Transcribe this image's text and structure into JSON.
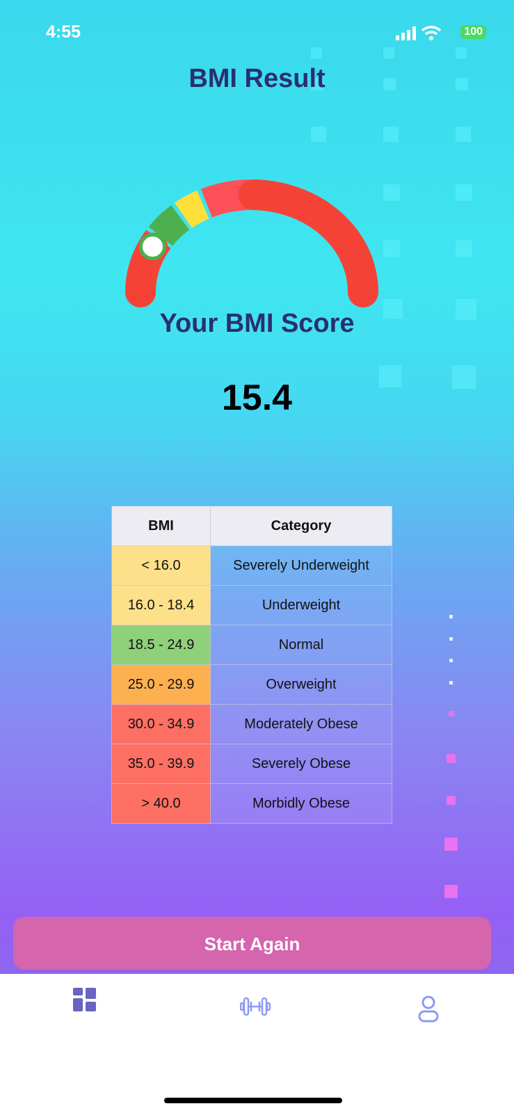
{
  "status_bar": {
    "time": "4:55",
    "battery": "100"
  },
  "header": {
    "title": "BMI Result"
  },
  "gauge": {
    "value": 15.4,
    "colors": {
      "red": "#f44336",
      "light_red": "#fd5059",
      "green": "#4caf50",
      "yellow": "#ffe03a",
      "marker_ring": "#4caf50"
    }
  },
  "result": {
    "label": "Your BMI Score",
    "score": "15.4"
  },
  "table": {
    "headers": [
      "BMI",
      "Category"
    ],
    "rows": [
      {
        "bmi": "< 16.0",
        "category": "Severely Underweight",
        "color": "#fde08a"
      },
      {
        "bmi": "16.0 - 18.4",
        "category": "Underweight",
        "color": "#fde08a"
      },
      {
        "bmi": "18.5 - 24.9",
        "category": "Normal",
        "color": "#8fd07a"
      },
      {
        "bmi": "25.0 - 29.9",
        "category": "Overweight",
        "color": "#fdb050"
      },
      {
        "bmi": "30.0 - 34.9",
        "category": "Moderately Obese",
        "color": "#fd6f63"
      },
      {
        "bmi": "35.0 - 39.9",
        "category": "Severely Obese",
        "color": "#fd6f63"
      },
      {
        "bmi": "> 40.0",
        "category": "Morbidly Obese",
        "color": "#fd6f63"
      }
    ]
  },
  "actions": {
    "start_again": "Start Again"
  },
  "bottom_nav": {
    "items": [
      {
        "icon": "dashboard-icon",
        "active": true
      },
      {
        "icon": "dumbbell-icon",
        "active": false
      },
      {
        "icon": "user-icon",
        "active": false
      }
    ]
  }
}
